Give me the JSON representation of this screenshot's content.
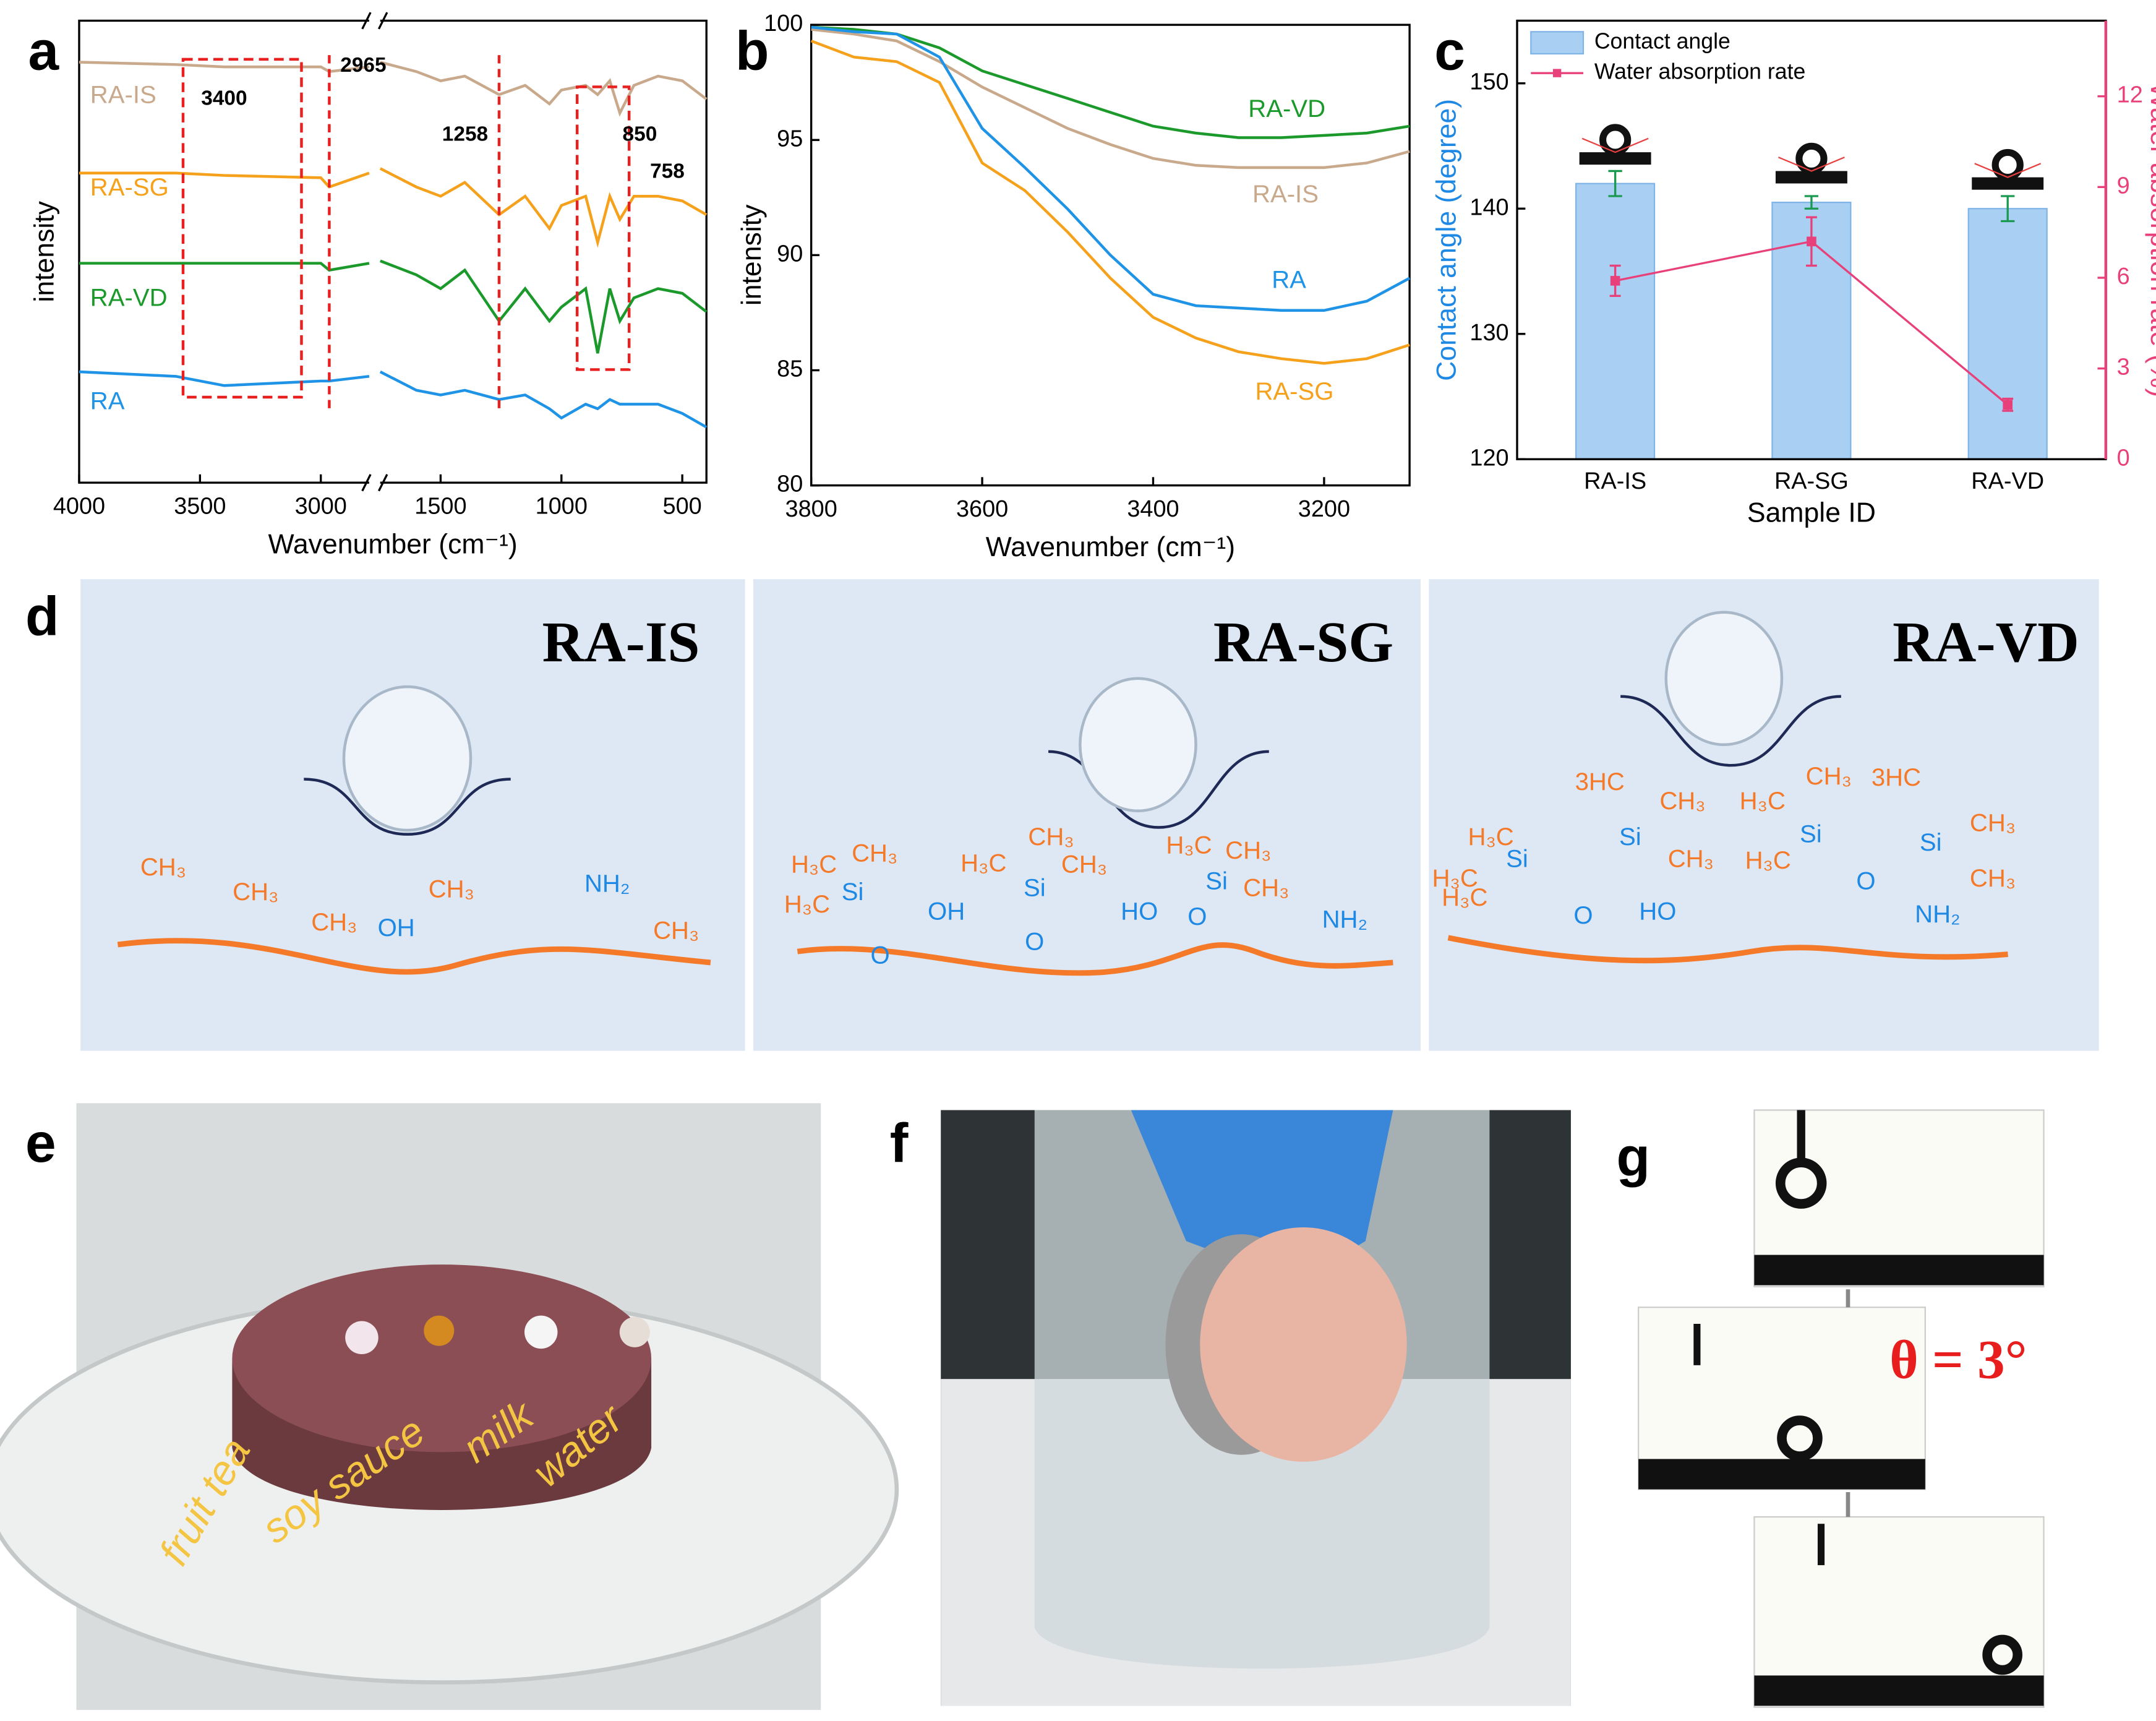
{
  "panel_labels": [
    "a",
    "b",
    "c",
    "d",
    "e",
    "f",
    "g"
  ],
  "chart_data": [
    {
      "type": "line",
      "xlabel": "Wavenumber (cm⁻¹)",
      "ylabel": "intensity",
      "xlim": [
        4000,
        400
      ],
      "xbreak": [
        2800,
        1750
      ],
      "ylim": [
        0,
        100
      ],
      "xticks": [
        4000,
        3500,
        3000,
        1500,
        1000,
        500
      ],
      "x": [
        4000,
        3600,
        3400,
        3000,
        2965,
        2800,
        2300,
        1750,
        1600,
        1500,
        1400,
        1258,
        1150,
        1050,
        1000,
        900,
        850,
        800,
        758,
        700,
        600,
        500,
        400
      ],
      "series": [
        {
          "name": "RA-IS",
          "color": "#c9a98c",
          "values": [
            91,
            90.5,
            90,
            90,
            89,
            90,
            null,
            91,
            89,
            87,
            88,
            84,
            86,
            82,
            85,
            86,
            84,
            87,
            80,
            86,
            88,
            87,
            83
          ]
        },
        {
          "name": "RA-SG",
          "color": "#f5a11c",
          "values": [
            67,
            67,
            66.5,
            66,
            64,
            67,
            null,
            68,
            64,
            62,
            65,
            58,
            62,
            55,
            60,
            62,
            52,
            62,
            57,
            62,
            62,
            61,
            58
          ]
        },
        {
          "name": "RA-VD",
          "color": "#1b9a2b",
          "values": [
            47.5,
            47.5,
            47.5,
            47.5,
            46,
            47.5,
            null,
            48,
            45,
            42,
            46,
            35,
            42,
            35,
            38,
            42,
            28,
            42,
            35,
            40,
            42,
            41,
            37
          ]
        },
        {
          "name": "RA",
          "color": "#1f93e6",
          "values": [
            24,
            23,
            21,
            22,
            22,
            23,
            null,
            24,
            20,
            19,
            20,
            18,
            19,
            16,
            14,
            17,
            16,
            18,
            17,
            17,
            17,
            15,
            12
          ]
        }
      ],
      "annotations": [
        {
          "text": "3400",
          "x": 3400
        },
        {
          "text": "2965",
          "x": 2965
        },
        {
          "text": "1258",
          "x": 1258
        },
        {
          "text": "850",
          "x": 850
        },
        {
          "text": "758",
          "x": 758
        }
      ]
    },
    {
      "type": "line",
      "xlabel": "Wavenumber (cm⁻¹)",
      "ylabel": "intensity",
      "xlim": [
        3800,
        3100
      ],
      "ylim": [
        80,
        100
      ],
      "xticks": [
        3800,
        3600,
        3400,
        3200
      ],
      "yticks": [
        80,
        85,
        90,
        95,
        100
      ],
      "x": [
        3800,
        3750,
        3700,
        3650,
        3600,
        3550,
        3500,
        3450,
        3400,
        3350,
        3300,
        3250,
        3200,
        3150,
        3100
      ],
      "series": [
        {
          "name": "RA-VD",
          "color": "#1b9a2b",
          "values": [
            99.9,
            99.8,
            99.6,
            99,
            98,
            97.4,
            96.8,
            96.2,
            95.6,
            95.3,
            95.1,
            95.1,
            95.2,
            95.3,
            95.6
          ]
        },
        {
          "name": "RA-IS",
          "color": "#c9a98c",
          "values": [
            99.8,
            99.6,
            99.3,
            98.4,
            97.3,
            96.4,
            95.5,
            94.8,
            94.2,
            93.9,
            93.8,
            93.8,
            93.8,
            94.0,
            94.5
          ]
        },
        {
          "name": "RA",
          "color": "#1f93e6",
          "values": [
            99.9,
            99.7,
            99.6,
            98.6,
            95.5,
            93.8,
            92,
            90,
            88.3,
            87.8,
            87.7,
            87.6,
            87.6,
            88.0,
            89.0
          ]
        },
        {
          "name": "RA-SG",
          "color": "#f5a11c",
          "values": [
            99.3,
            98.6,
            98.4,
            97.5,
            94,
            92.8,
            91,
            89,
            87.3,
            86.4,
            85.8,
            85.5,
            85.3,
            85.5,
            86.1
          ]
        }
      ]
    },
    {
      "type": "bar",
      "xlabel": "Sample ID",
      "ylabel": "Contact angle (degree)",
      "y2label": "Water absorption rate (%)",
      "categories": [
        "RA-IS",
        "RA-SG",
        "RA-VD"
      ],
      "ylim": [
        120,
        155
      ],
      "yticks": [
        120,
        130,
        140,
        150
      ],
      "y2lim": [
        0,
        14.5
      ],
      "y2ticks": [
        0,
        3,
        6,
        9,
        12
      ],
      "legend": "upper left",
      "series": [
        {
          "name": "Contact angle",
          "type": "bar",
          "color": "#a9cff2",
          "error_color": "#1a9a50",
          "values": [
            142,
            140.5,
            140
          ],
          "errors": [
            1,
            0.5,
            1
          ]
        },
        {
          "name": "Water absorption rate",
          "type": "line",
          "axis": "y2",
          "color": "#e8407a",
          "values": [
            5.9,
            7.2,
            1.8
          ],
          "errors": [
            0.5,
            0.8,
            0.2
          ]
        }
      ]
    }
  ],
  "diagram": {
    "panels": [
      {
        "title": "RA-IS",
        "labels": [
          "CH₃",
          "CH₃",
          "CH₃",
          "OH",
          "CH₃",
          "NH₂",
          "CH₃"
        ]
      },
      {
        "title": "RA-SG",
        "labels": [
          "H₃C",
          "CH₃",
          "H₃C",
          "Si",
          "O",
          "OH",
          "CH₃",
          "H₃C",
          "CH₃",
          "Si",
          "O",
          "HO",
          "H₃C",
          "CH₃",
          "Si",
          "CH₃",
          "O",
          "NH₂"
        ]
      },
      {
        "title": "RA-VD",
        "labels": [
          "H₃C",
          "H₃C",
          "Si",
          "H₃C",
          "O",
          "3HC",
          "Si",
          "CH₃",
          "CH₃",
          "H₃C",
          "CH₃",
          "Si",
          "H₃C",
          "O",
          "3HC",
          "Si",
          "CH₃",
          "CH₃",
          "HO",
          "NH₂"
        ]
      }
    ]
  },
  "photos": {
    "e": {
      "labels": [
        "fruit tea",
        "soy sauce",
        "milk",
        "water"
      ]
    },
    "g": {
      "annotation": "θ = 3°"
    }
  }
}
